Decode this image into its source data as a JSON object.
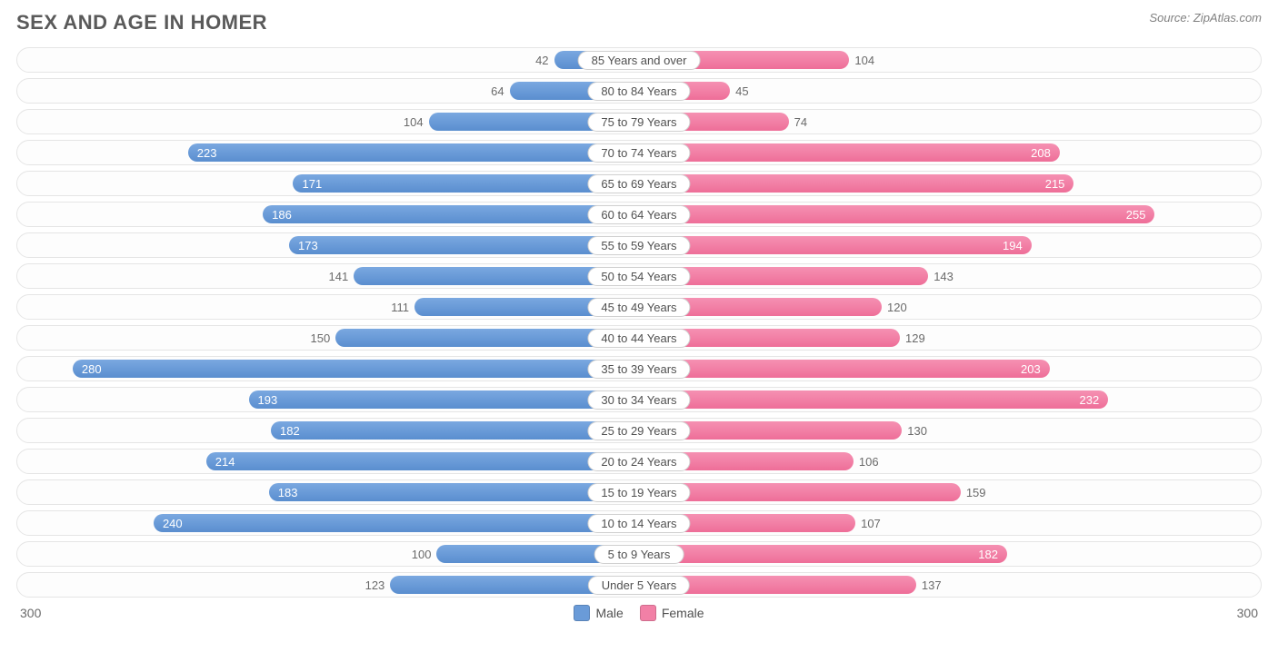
{
  "title": "SEX AND AGE IN HOMER",
  "source": "Source: ZipAtlas.com",
  "chart": {
    "type": "population-pyramid",
    "axis_max": 300,
    "axis_label_left": "300",
    "axis_label_right": "300",
    "male_color": "#6a9bd8",
    "female_color": "#f280a6",
    "bar_inside_text_color": "#ffffff",
    "bar_outside_text_color": "#6a6a6a",
    "row_background": "#fdfdfd",
    "row_border": "#e5e5e5",
    "inside_label_threshold": 170,
    "rows": [
      {
        "label": "85 Years and over",
        "male": 42,
        "female": 104
      },
      {
        "label": "80 to 84 Years",
        "male": 64,
        "female": 45
      },
      {
        "label": "75 to 79 Years",
        "male": 104,
        "female": 74
      },
      {
        "label": "70 to 74 Years",
        "male": 223,
        "female": 208
      },
      {
        "label": "65 to 69 Years",
        "male": 171,
        "female": 215
      },
      {
        "label": "60 to 64 Years",
        "male": 186,
        "female": 255
      },
      {
        "label": "55 to 59 Years",
        "male": 173,
        "female": 194
      },
      {
        "label": "50 to 54 Years",
        "male": 141,
        "female": 143
      },
      {
        "label": "45 to 49 Years",
        "male": 111,
        "female": 120
      },
      {
        "label": "40 to 44 Years",
        "male": 150,
        "female": 129
      },
      {
        "label": "35 to 39 Years",
        "male": 280,
        "female": 203
      },
      {
        "label": "30 to 34 Years",
        "male": 193,
        "female": 232
      },
      {
        "label": "25 to 29 Years",
        "male": 182,
        "female": 130
      },
      {
        "label": "20 to 24 Years",
        "male": 214,
        "female": 106
      },
      {
        "label": "15 to 19 Years",
        "male": 183,
        "female": 159
      },
      {
        "label": "10 to 14 Years",
        "male": 240,
        "female": 107
      },
      {
        "label": "5 to 9 Years",
        "male": 100,
        "female": 182
      },
      {
        "label": "Under 5 Years",
        "male": 123,
        "female": 137
      }
    ]
  },
  "legend": {
    "male_label": "Male",
    "female_label": "Female"
  }
}
